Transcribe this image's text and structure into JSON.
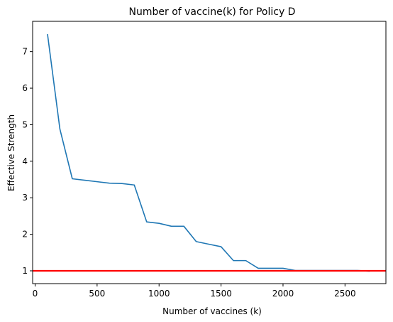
{
  "chart_data": {
    "type": "line",
    "title": "Number of vaccine(k) for Policy D",
    "xlabel": "Number of vaccines (k)",
    "ylabel": "Effective Strength",
    "xlim": [
      -20,
      2830
    ],
    "ylim": [
      0.65,
      7.83
    ],
    "x_ticks": [
      0,
      500,
      1000,
      1500,
      2000,
      2500
    ],
    "y_ticks": [
      1,
      2,
      3,
      4,
      5,
      6,
      7
    ],
    "grid": false,
    "series": [
      {
        "color": "#1f77b4",
        "x": [
          100,
          200,
          300,
          400,
          500,
          600,
          700,
          800,
          900,
          1000,
          1100,
          1200,
          1300,
          1400,
          1500,
          1600,
          1700,
          1800,
          1900,
          2000,
          2100,
          2200,
          2300,
          2400,
          2500,
          2600,
          2700
        ],
        "y": [
          7.48,
          4.88,
          3.52,
          3.48,
          3.44,
          3.4,
          3.39,
          3.35,
          2.34,
          2.3,
          2.22,
          2.22,
          1.8,
          1.73,
          1.66,
          1.28,
          1.28,
          1.07,
          1.07,
          1.07,
          1.01,
          1.01,
          1.01,
          1.01,
          1.01,
          1.01,
          0.99
        ]
      }
    ],
    "reference_line": {
      "orientation": "horizontal",
      "y": 1.0,
      "color": "#ff0000"
    }
  }
}
